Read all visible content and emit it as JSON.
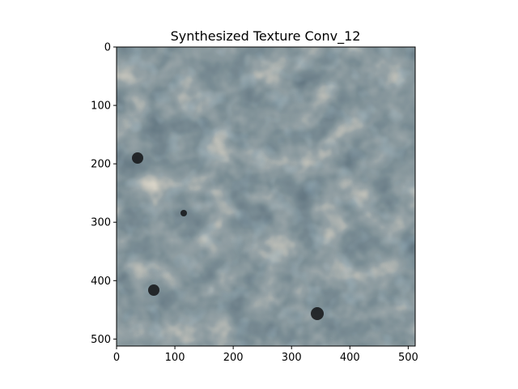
{
  "figure": {
    "title": "Synthesized Texture Conv_12"
  },
  "axes": {
    "xlim": [
      0,
      512
    ],
    "ylim": [
      512,
      0
    ],
    "x_ticks": [
      0,
      100,
      200,
      300,
      400,
      500
    ],
    "y_ticks": [
      0,
      100,
      200,
      300,
      400,
      500
    ],
    "x_tick_labels": [
      "0",
      "100",
      "200",
      "300",
      "400",
      "500"
    ],
    "y_tick_labels": [
      "0",
      "100",
      "200",
      "300",
      "400",
      "500"
    ]
  },
  "image": {
    "palette": {
      "background": "#27373f",
      "dark_blue": "#1a2c39",
      "teal": "#3c5868",
      "light_blue": "#7e99a6",
      "tan": "#c8b497",
      "cream": "#e3d2b9",
      "dark_spot": "#131416"
    }
  }
}
